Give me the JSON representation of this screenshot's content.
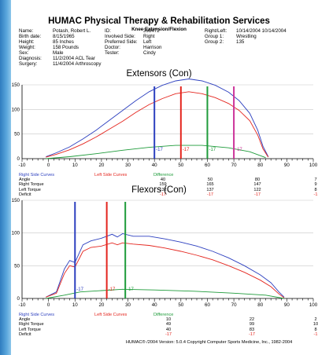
{
  "report": {
    "title": "HUMAC Physical Therapy & Rehabilitation Services",
    "subtitle": "Knee Extension/Flexion"
  },
  "patient": {
    "name_label": "Name:",
    "name": "Potash, Robert L.",
    "birth_label": "Birth date:",
    "birth": "8/15/1965",
    "height_label": "Height:",
    "height": "85 Inches",
    "weight_label": "Weight:",
    "weight": "158 Pounds",
    "sex_label": "Sex:",
    "sex": "Male",
    "diagnosis_label": "Diagnosis:",
    "diagnosis": "11/2/2004 ACL Tear",
    "surgery_label": "Surgery:",
    "surgery": "11/4/2004 Arthroscopy",
    "id_label": "ID:",
    "id": "398472",
    "involved_label": "Involved Side:",
    "involved": "Right",
    "preferred_label": "Preferred Side:",
    "preferred": "Left",
    "doctor_label": "Doctor:",
    "doctor": "Harrison",
    "tester_label": "Tester:",
    "tester": "Cindy",
    "rl_label": "Right/Left:",
    "rl": "10/14/2004 10/14/2004",
    "group1_label": "Group 1:",
    "group1": "Wrestling",
    "group2_label": "Group 2:",
    "group2": "135"
  },
  "colors": {
    "right": "#2c3fbf",
    "left": "#e4251e",
    "difference": "#1e9b3a",
    "marker4": "#cc3399"
  },
  "chart_data": [
    {
      "type": "line",
      "title": "Extensors (Con)",
      "xlim": [
        -10,
        100
      ],
      "ylim": [
        0,
        150
      ],
      "x_ticks": [
        "-10",
        "0",
        "10",
        "20",
        "30",
        "40",
        "50",
        "60",
        "70",
        "80",
        "90",
        "100"
      ],
      "y_ticks": [
        "0",
        "50",
        "100",
        "150"
      ],
      "series": [
        {
          "name": "Right Side Curves",
          "color": "#2c3fbf",
          "x": [
            -1,
            3,
            8,
            13,
            18,
            23,
            28,
            33,
            38,
            43,
            48,
            53,
            58,
            63,
            68,
            72,
            76,
            79,
            81,
            83
          ],
          "y": [
            4,
            12,
            24,
            40,
            58,
            78,
            98,
            118,
            136,
            149,
            158,
            162,
            158,
            149,
            135,
            118,
            92,
            58,
            25,
            4
          ]
        },
        {
          "name": "Left Side Curves",
          "color": "#e4251e",
          "x": [
            -1,
            3,
            8,
            13,
            18,
            23,
            28,
            33,
            38,
            43,
            48,
            53,
            58,
            63,
            68,
            72,
            76,
            79,
            81,
            83
          ],
          "y": [
            3,
            9,
            18,
            30,
            44,
            60,
            76,
            94,
            110,
            122,
            132,
            136,
            132,
            124,
            112,
            98,
            77,
            48,
            20,
            3
          ]
        },
        {
          "name": "Difference",
          "color": "#1e9b3a",
          "x": [
            -1,
            8,
            18,
            28,
            38,
            48,
            58,
            68,
            76,
            82
          ],
          "y": [
            0,
            4,
            10,
            17,
            23,
            27,
            27,
            22,
            14,
            2
          ]
        }
      ],
      "markers": [
        {
          "x": 40,
          "color": "#2c3fbf",
          "label": "-17"
        },
        {
          "x": 50,
          "color": "#e4251e",
          "label": "-17"
        },
        {
          "x": 60,
          "color": "#1e9b3a",
          "label": "-17"
        },
        {
          "x": 70,
          "color": "#cc3399",
          "label": "-17"
        }
      ]
    },
    {
      "type": "line",
      "title": "Flexors (Con)",
      "xlim": [
        -10,
        100
      ],
      "ylim": [
        0,
        150
      ],
      "x_ticks": [
        "-10",
        "0",
        "10",
        "20",
        "30",
        "40",
        "50",
        "60",
        "70",
        "80",
        "90",
        "100"
      ],
      "y_ticks": [
        "0",
        "50",
        "100",
        "150"
      ],
      "series": [
        {
          "name": "Right Side Curves",
          "color": "#2c3fbf",
          "x": [
            -1,
            3,
            6,
            8,
            10,
            13,
            16,
            20,
            24,
            26,
            28,
            32,
            38,
            44,
            50,
            56,
            62,
            68,
            74,
            80,
            84,
            87,
            89
          ],
          "y": [
            2,
            10,
            45,
            58,
            55,
            82,
            88,
            92,
            98,
            94,
            99,
            95,
            95,
            91,
            86,
            80,
            72,
            62,
            50,
            36,
            24,
            10,
            2
          ]
        },
        {
          "name": "Left Side Curves",
          "color": "#e4251e",
          "x": [
            -1,
            3,
            6,
            8,
            10,
            13,
            16,
            20,
            24,
            26,
            28,
            32,
            38,
            44,
            50,
            56,
            62,
            68,
            74,
            80,
            84,
            87,
            89
          ],
          "y": [
            2,
            8,
            38,
            50,
            48,
            72,
            78,
            80,
            85,
            82,
            85,
            83,
            81,
            77,
            72,
            66,
            59,
            50,
            40,
            28,
            18,
            7,
            1
          ]
        },
        {
          "name": "Difference",
          "color": "#1e9b3a",
          "x": [
            -1,
            6,
            12,
            20,
            28,
            40,
            55,
            70,
            82,
            89
          ],
          "y": [
            0,
            5,
            10,
            12,
            14,
            13,
            11,
            8,
            5,
            0
          ]
        }
      ],
      "markers": [
        {
          "x": 10,
          "color": "#2c3fbf",
          "label": "-17"
        },
        {
          "x": 22,
          "color": "#e4251e",
          "label": "-17"
        },
        {
          "x": 29,
          "color": "#1e9b3a",
          "label": "-17"
        }
      ]
    }
  ],
  "ext_table": {
    "legend_right": "Right Side Curves",
    "legend_left": "Left Side Curves",
    "legend_diff": "Difference",
    "rows": [
      {
        "label": "Angle",
        "values": [
          "40",
          "50",
          "80",
          "7"
        ]
      },
      {
        "label": "Right Torque",
        "values": [
          "159",
          "165",
          "147",
          "9"
        ]
      },
      {
        "label": "Left Torque",
        "values": [
          "132",
          "137",
          "122",
          "8"
        ]
      },
      {
        "label": "Deficit",
        "values": [
          "-17",
          "-17",
          "-17",
          "-1"
        ]
      }
    ]
  },
  "flex_table": {
    "legend_right": "Right Side Curves",
    "legend_left": "Left Side Curves",
    "legend_diff": "Difference",
    "rows": [
      {
        "label": "Angle",
        "values": [
          "10",
          "22",
          "2"
        ]
      },
      {
        "label": "Right Torque",
        "values": [
          "49",
          "99",
          "10"
        ]
      },
      {
        "label": "Left Torque",
        "values": [
          "40",
          "83",
          "8"
        ]
      },
      {
        "label": "Deficit",
        "values": [
          "-17",
          "-17",
          "-1"
        ]
      }
    ]
  },
  "footer": "HUMAC® /2004 Version: 5.0.4 Copyright Computer Sports Medicine, Inc., 1982-2004"
}
